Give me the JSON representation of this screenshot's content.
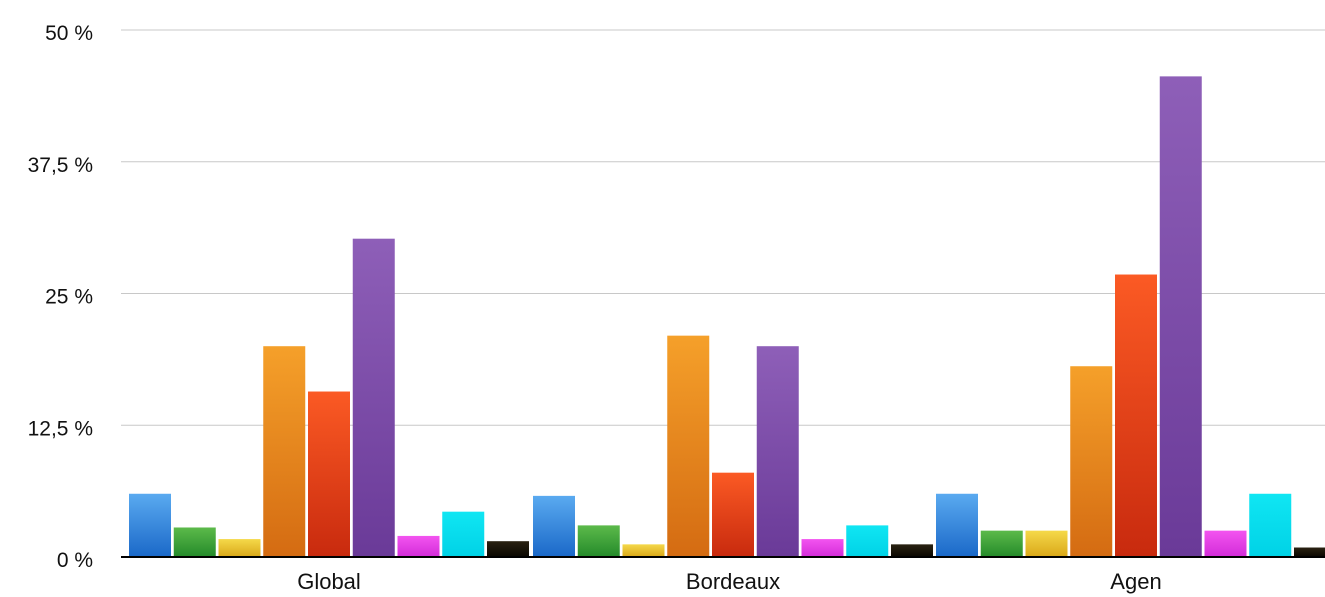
{
  "chart_data": {
    "type": "bar",
    "categories": [
      "Global",
      "Bordeaux",
      "Agen"
    ],
    "y_ticks": [
      "0 %",
      "12,5 %",
      "25 %",
      "37,5 %",
      "50 %"
    ],
    "y_tick_values": [
      0,
      12.5,
      25,
      37.5,
      50
    ],
    "ylim": [
      0,
      50
    ],
    "grid": true,
    "legend": "none",
    "series": [
      {
        "color_top": "#5aaaf0",
        "color_bottom": "#1a68c8",
        "values": [
          6.0,
          5.8,
          6.0
        ]
      },
      {
        "color_top": "#5cba4a",
        "color_bottom": "#248a2a",
        "values": [
          2.8,
          3.0,
          2.5
        ]
      },
      {
        "color_top": "#f5d94a",
        "color_bottom": "#d9a718",
        "values": [
          1.7,
          1.2,
          2.5
        ]
      },
      {
        "color_top": "#f5a02a",
        "color_bottom": "#d46b12",
        "values": [
          20.0,
          21.0,
          18.1
        ]
      },
      {
        "color_top": "#fb5a24",
        "color_bottom": "#c82a0e",
        "values": [
          15.7,
          8.0,
          26.8
        ]
      },
      {
        "color_top": "#8e5fb8",
        "color_bottom": "#6a3a98",
        "values": [
          30.2,
          20.0,
          45.6
        ]
      },
      {
        "color_top": "#f354f0",
        "color_bottom": "#d22cd8",
        "values": [
          2.0,
          1.7,
          2.5
        ]
      },
      {
        "color_top": "#10e6f3",
        "color_bottom": "#00d2e6",
        "values": [
          4.3,
          3.0,
          6.0
        ]
      },
      {
        "color_top": "#2a2212",
        "color_bottom": "#0a0700",
        "values": [
          1.5,
          1.2,
          0.9
        ]
      }
    ]
  }
}
